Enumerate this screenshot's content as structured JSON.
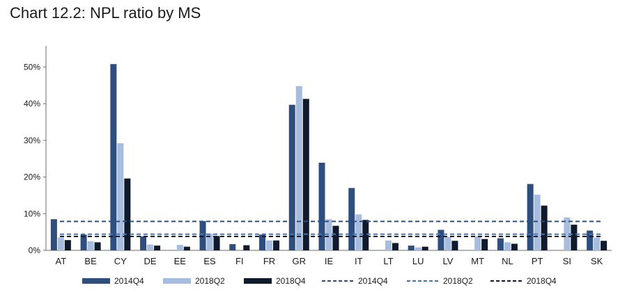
{
  "title": "Chart 12.2: NPL ratio by MS",
  "colors": {
    "2014Q4": "#2e4f7e",
    "2018Q2": "#a6bde0",
    "2018Q4": "#0f1a2c",
    "axis": "#6b6b6b",
    "text": "#1a1a1a"
  },
  "chart_data": {
    "type": "bar",
    "title": "Chart 12.2: NPL ratio by MS",
    "xlabel": "",
    "ylabel": "",
    "ylim": [
      0,
      55
    ],
    "yticks": [
      0,
      10,
      20,
      30,
      40,
      50
    ],
    "ytick_labels": [
      "0%",
      "10%",
      "20%",
      "30%",
      "40%",
      "50%"
    ],
    "grid": false,
    "legend_position": "bottom",
    "categories": [
      "AT",
      "BE",
      "CY",
      "DE",
      "EE",
      "ES",
      "FI",
      "FR",
      "GR",
      "IE",
      "IT",
      "LT",
      "LU",
      "LV",
      "MT",
      "NL",
      "PT",
      "SI",
      "SK"
    ],
    "series": [
      {
        "name": "2014Q4",
        "kind": "bar",
        "values": [
          8.5,
          4.3,
          50.8,
          3.8,
          0,
          8.0,
          1.7,
          4.3,
          39.7,
          23.9,
          17.0,
          0,
          1.3,
          5.6,
          0,
          3.3,
          18.1,
          0,
          5.4
        ]
      },
      {
        "name": "2018Q2",
        "kind": "bar",
        "values": [
          3.5,
          2.5,
          29.2,
          1.6,
          1.5,
          4.5,
          0,
          2.7,
          44.8,
          8.5,
          9.8,
          2.7,
          0.8,
          3.6,
          3.8,
          2.2,
          15.2,
          9.0,
          3.5
        ]
      },
      {
        "name": "2018Q4",
        "kind": "bar",
        "values": [
          2.8,
          2.2,
          19.6,
          1.3,
          1.0,
          3.9,
          1.4,
          2.7,
          41.3,
          6.7,
          8.3,
          2.0,
          1.0,
          2.6,
          3.1,
          1.8,
          12.2,
          7.0,
          2.6
        ]
      },
      {
        "name": "2014Q4",
        "kind": "line",
        "value": 7.9
      },
      {
        "name": "2018Q2",
        "kind": "line",
        "value": 4.4
      },
      {
        "name": "2018Q4",
        "kind": "line",
        "value": 3.8
      }
    ]
  }
}
